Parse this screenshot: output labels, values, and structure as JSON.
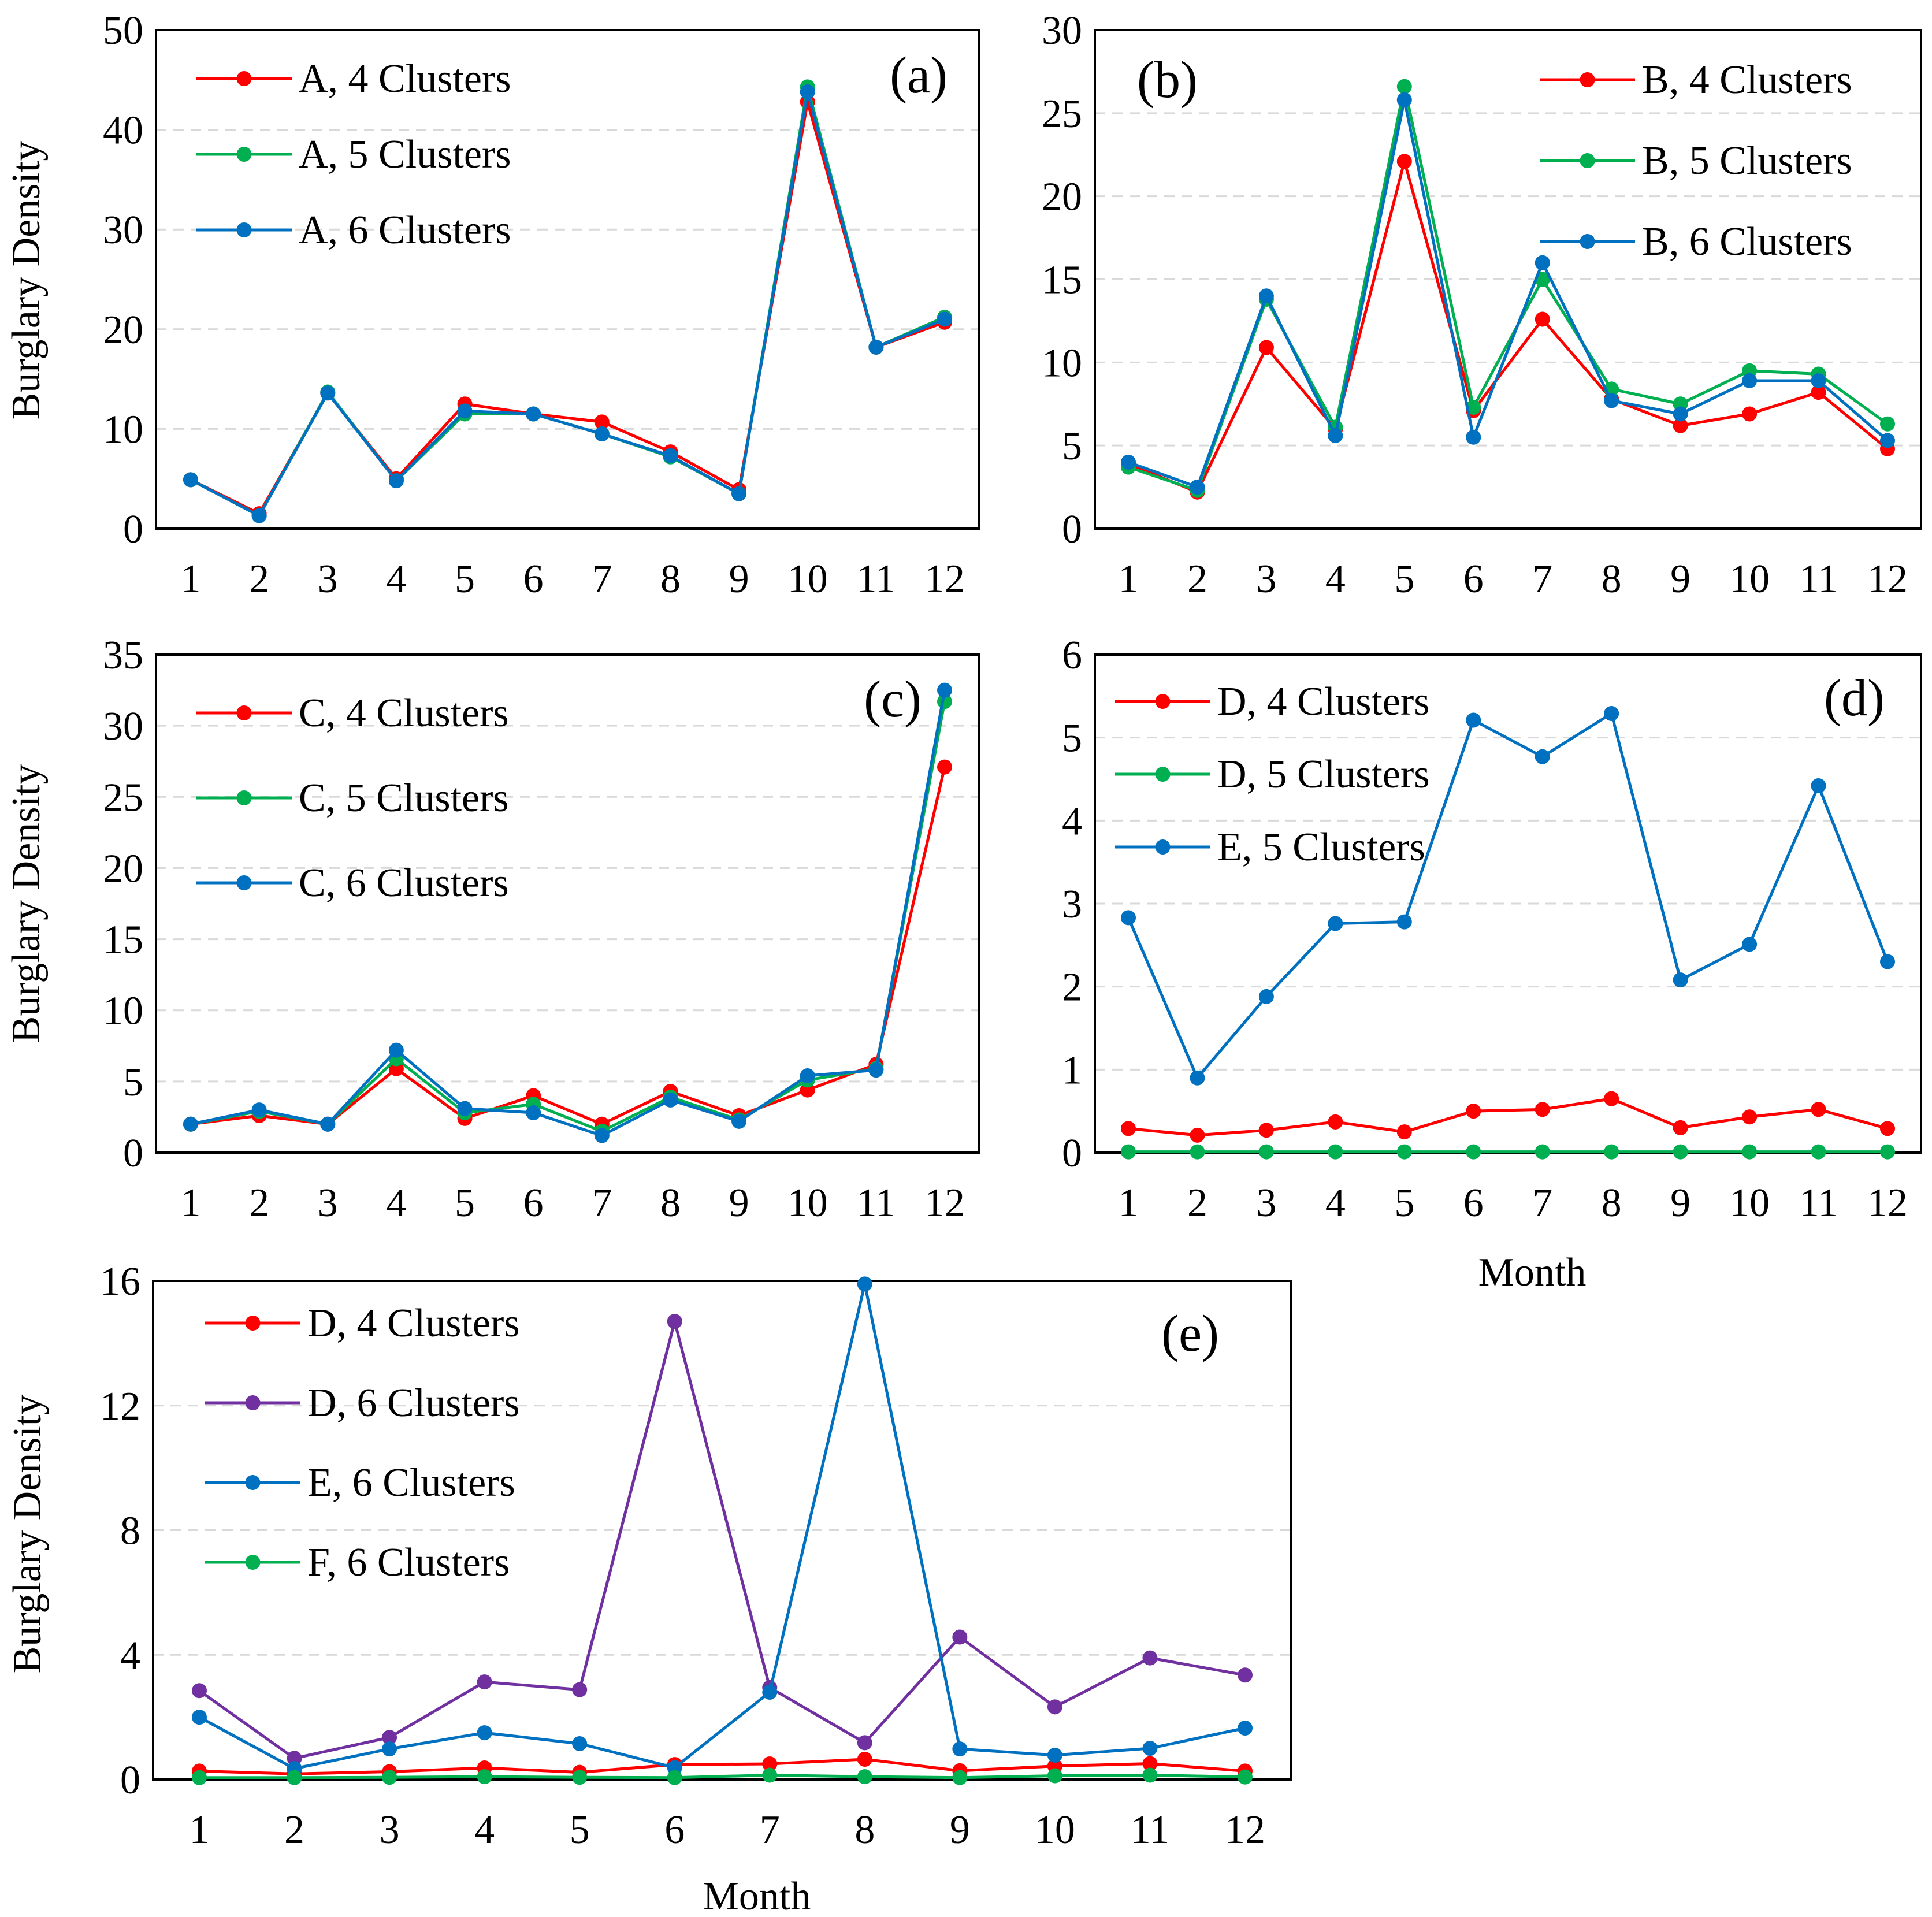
{
  "chart_data": [
    {
      "id": "a",
      "type": "line",
      "panel_label": "(a)",
      "xlabel": "",
      "ylabel": "Burglary Density",
      "ylim": [
        0,
        50
      ],
      "yticks": [
        0,
        10,
        20,
        30,
        40,
        50
      ],
      "yticklabels": [
        "0",
        "10",
        "20",
        "30",
        "40",
        "50"
      ],
      "grid": true,
      "legend_position": "top-left",
      "categories": [
        "1",
        "2",
        "3",
        "4",
        "5",
        "6",
        "7",
        "8",
        "9",
        "10",
        "11",
        "12"
      ],
      "series": [
        {
          "name": "A, 4 Clusters",
          "color": "#ff0000",
          "values": [
            4.9,
            1.5,
            13.6,
            5.0,
            12.5,
            11.5,
            10.7,
            7.7,
            3.9,
            42.8,
            18.2,
            20.7
          ]
        },
        {
          "name": "A, 5 Clusters",
          "color": "#00b050",
          "values": [
            4.9,
            1.3,
            13.7,
            4.8,
            11.5,
            11.5,
            9.5,
            7.2,
            3.5,
            44.3,
            18.2,
            21.2
          ]
        },
        {
          "name": "A, 6 Clusters",
          "color": "#0070c0",
          "values": [
            4.9,
            1.3,
            13.6,
            4.8,
            11.8,
            11.5,
            9.5,
            7.3,
            3.5,
            43.8,
            18.2,
            21.0
          ]
        }
      ]
    },
    {
      "id": "b",
      "type": "line",
      "panel_label": "(b)",
      "xlabel": "",
      "ylabel": "",
      "ylim": [
        0,
        30
      ],
      "yticks": [
        0,
        5,
        10,
        15,
        20,
        25,
        30
      ],
      "yticklabels": [
        "0",
        "5",
        "10",
        "15",
        "20",
        "25",
        "30"
      ],
      "grid": true,
      "legend_position": "top-right",
      "categories": [
        "1",
        "2",
        "3",
        "4",
        "5",
        "6",
        "7",
        "8",
        "9",
        "10",
        "11",
        "12"
      ],
      "series": [
        {
          "name": "B, 4 Clusters",
          "color": "#ff0000",
          "values": [
            3.9,
            2.2,
            10.9,
            6.0,
            22.1,
            7.1,
            12.6,
            7.8,
            6.2,
            6.9,
            8.2,
            4.8
          ]
        },
        {
          "name": "B, 5 Clusters",
          "color": "#00b050",
          "values": [
            3.7,
            2.3,
            13.8,
            6.1,
            26.6,
            7.3,
            15.0,
            8.4,
            7.5,
            9.5,
            9.3,
            6.3
          ]
        },
        {
          "name": "B, 6 Clusters",
          "color": "#0070c0",
          "values": [
            4.0,
            2.5,
            14.0,
            5.6,
            25.8,
            5.5,
            16.0,
            7.7,
            6.9,
            8.9,
            8.9,
            5.3
          ]
        }
      ]
    },
    {
      "id": "c",
      "type": "line",
      "panel_label": "(c)",
      "xlabel": "",
      "ylabel": "Burglary Density",
      "ylim": [
        0,
        35
      ],
      "yticks": [
        0,
        5,
        10,
        15,
        20,
        25,
        30,
        35
      ],
      "yticklabels": [
        "0",
        "5",
        "10",
        "15",
        "20",
        "25",
        "30",
        "35"
      ],
      "grid": true,
      "legend_position": "top-left",
      "categories": [
        "1",
        "2",
        "3",
        "4",
        "5",
        "6",
        "7",
        "8",
        "9",
        "10",
        "11",
        "12"
      ],
      "series": [
        {
          "name": "C, 4 Clusters",
          "color": "#ff0000",
          "values": [
            2.0,
            2.6,
            2.0,
            5.9,
            2.4,
            4.0,
            2.0,
            4.3,
            2.6,
            4.4,
            6.2,
            27.1
          ]
        },
        {
          "name": "C, 5 Clusters",
          "color": "#00b050",
          "values": [
            2.0,
            2.9,
            2.0,
            6.6,
            2.8,
            3.4,
            1.5,
            3.9,
            2.3,
            5.1,
            5.9,
            31.7
          ]
        },
        {
          "name": "C, 6 Clusters",
          "color": "#0070c0",
          "values": [
            2.0,
            3.0,
            2.0,
            7.2,
            3.1,
            2.8,
            1.2,
            3.7,
            2.2,
            5.4,
            5.8,
            32.5
          ]
        }
      ]
    },
    {
      "id": "d",
      "type": "line",
      "panel_label": "(d)",
      "xlabel": "Month",
      "ylabel": "",
      "ylim": [
        0,
        6
      ],
      "yticks": [
        0,
        1,
        2,
        3,
        4,
        5,
        6
      ],
      "yticklabels": [
        "0",
        "1",
        "2",
        "3",
        "4",
        "5",
        "6"
      ],
      "grid": true,
      "legend_position": "top-left",
      "categories": [
        "1",
        "2",
        "3",
        "4",
        "5",
        "6",
        "7",
        "8",
        "9",
        "10",
        "11",
        "12"
      ],
      "series": [
        {
          "name": "D, 4 Clusters",
          "color": "#ff0000",
          "values": [
            0.29,
            0.21,
            0.27,
            0.37,
            0.25,
            0.5,
            0.52,
            0.65,
            0.3,
            0.43,
            0.52,
            0.29
          ]
        },
        {
          "name": "D, 5 Clusters",
          "color": "#00b050",
          "values": [
            0.01,
            0.01,
            0.01,
            0.01,
            0.01,
            0.01,
            0.01,
            0.01,
            0.01,
            0.01,
            0.01,
            0.01
          ]
        },
        {
          "name": "E, 5 Clusters",
          "color": "#0070c0",
          "values": [
            2.83,
            0.9,
            1.88,
            2.76,
            2.78,
            5.21,
            4.77,
            5.29,
            2.08,
            2.51,
            4.42,
            2.3
          ]
        }
      ]
    },
    {
      "id": "e",
      "type": "line",
      "panel_label": "(e)",
      "xlabel": "Month",
      "ylabel": "Burglary Density",
      "ylim": [
        0,
        16
      ],
      "yticks": [
        0,
        4,
        8,
        12,
        16
      ],
      "yticklabels": [
        "0",
        "4",
        "8",
        "12",
        "16"
      ],
      "grid": true,
      "legend_position": "top-left",
      "categories": [
        "1",
        "2",
        "3",
        "4",
        "5",
        "6",
        "7",
        "8",
        "9",
        "10",
        "11",
        "12"
      ],
      "series": [
        {
          "name": "D, 4 Clusters",
          "color": "#ff0000",
          "values": [
            0.27,
            0.18,
            0.25,
            0.37,
            0.23,
            0.48,
            0.5,
            0.65,
            0.28,
            0.43,
            0.51,
            0.27
          ]
        },
        {
          "name": "D, 6 Clusters",
          "color": "#7030a0",
          "values": [
            2.85,
            0.68,
            1.35,
            3.13,
            2.88,
            14.7,
            2.95,
            1.18,
            4.57,
            2.33,
            3.9,
            3.35
          ]
        },
        {
          "name": "E, 6 Clusters",
          "color": "#0070c0",
          "values": [
            2.0,
            0.35,
            0.98,
            1.5,
            1.15,
            0.38,
            2.8,
            15.9,
            0.98,
            0.78,
            1.0,
            1.65
          ]
        },
        {
          "name": "F, 6 Clusters",
          "color": "#00b050",
          "values": [
            0.06,
            0.06,
            0.07,
            0.09,
            0.07,
            0.06,
            0.14,
            0.09,
            0.06,
            0.12,
            0.14,
            0.08
          ]
        }
      ]
    }
  ]
}
